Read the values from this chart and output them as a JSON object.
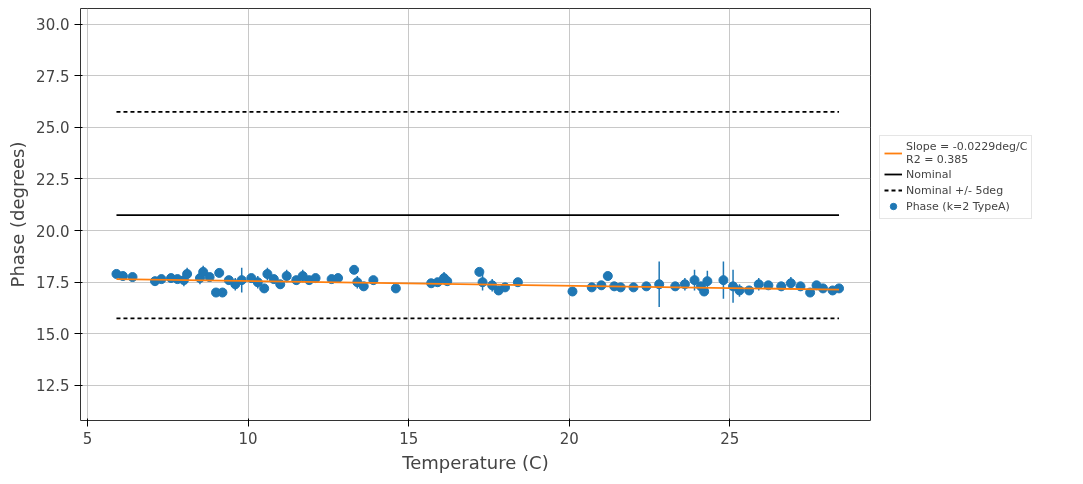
{
  "chart_data": {
    "type": "scatter",
    "xlabel": "Temperature (C)",
    "ylabel": "Phase (degrees)",
    "xlim": [
      4.78,
      29.38
    ],
    "ylim": [
      10.8,
      30.76
    ],
    "xticks": [
      5,
      10,
      15,
      20,
      25
    ],
    "yticks": [
      {
        "value": 12.5,
        "label": "12.5"
      },
      {
        "value": 15,
        "label": "15.0"
      },
      {
        "value": 17.5,
        "label": "17.5"
      },
      {
        "value": 20,
        "label": "20.0"
      },
      {
        "value": 22.5,
        "label": "22.5"
      },
      {
        "value": 25,
        "label": "25.0"
      },
      {
        "value": 27.5,
        "label": "27.5"
      },
      {
        "value": 30,
        "label": "30.0"
      }
    ],
    "grid": true,
    "legend": "right",
    "series": [
      {
        "name": "Slope = -0.0229deg/C\nR2 = 0.385",
        "type": "line",
        "line_style": "solid",
        "color": "#ff7f0e",
        "x": [
          5.9,
          28.4
        ],
        "values": [
          17.65,
          17.14
        ]
      },
      {
        "name": "Nominal",
        "type": "line",
        "line_style": "solid",
        "color": "#000000",
        "x": [
          5.9,
          28.4
        ],
        "values": [
          20.75,
          20.75
        ]
      },
      {
        "name": "Nominal +/- 5deg",
        "type": "line",
        "line_style": "dashed",
        "color": "#000000",
        "x": [
          5.9,
          28.4
        ],
        "values": [
          25.75,
          25.75
        ]
      },
      {
        "type": "line",
        "line_style": "dashed",
        "color": "#000000",
        "x": [
          5.9,
          28.4
        ],
        "values": [
          15.75,
          15.75
        ]
      },
      {
        "name": "Phase (k=2 TypeA)",
        "marker": "circle",
        "color": "#1f77b4",
        "x": [
          5.9,
          6.1,
          6.4,
          7.1,
          7.3,
          7.6,
          7.8,
          8.0,
          8.1,
          8.5,
          8.6,
          8.8,
          9.0,
          9.2,
          9.1,
          9.4,
          9.6,
          9.8,
          10.1,
          10.3,
          10.5,
          10.6,
          10.8,
          11.0,
          11.2,
          11.5,
          11.7,
          11.9,
          12.1,
          12.6,
          12.8,
          13.3,
          13.4,
          13.6,
          13.9,
          14.6,
          15.7,
          15.9,
          16.1,
          16.2,
          17.2,
          17.3,
          17.6,
          17.8,
          18.0,
          18.4,
          20.1,
          20.7,
          21.0,
          21.2,
          21.4,
          21.6,
          22.0,
          22.4,
          22.8,
          23.3,
          23.6,
          23.9,
          24.1,
          24.2,
          24.3,
          24.8,
          25.1,
          25.3,
          25.6,
          25.9,
          26.2,
          26.6,
          26.9,
          27.2,
          27.5,
          27.7,
          27.9,
          28.2,
          28.4
        ],
        "values": [
          17.9,
          17.8,
          17.75,
          17.55,
          17.65,
          17.7,
          17.65,
          17.6,
          17.9,
          17.7,
          18.0,
          17.75,
          17.0,
          17.0,
          17.95,
          17.6,
          17.4,
          17.6,
          17.7,
          17.5,
          17.2,
          17.9,
          17.65,
          17.4,
          17.8,
          17.6,
          17.8,
          17.6,
          17.7,
          17.65,
          17.7,
          18.1,
          17.5,
          17.3,
          17.6,
          17.2,
          17.45,
          17.5,
          17.7,
          17.55,
          18.0,
          17.5,
          17.35,
          17.1,
          17.25,
          17.5,
          17.05,
          17.25,
          17.35,
          17.8,
          17.3,
          17.25,
          17.25,
          17.3,
          17.4,
          17.3,
          17.4,
          17.6,
          17.3,
          17.05,
          17.55,
          17.6,
          17.3,
          17.1,
          17.1,
          17.4,
          17.35,
          17.3,
          17.45,
          17.3,
          17.0,
          17.35,
          17.2,
          17.1,
          17.2
        ],
        "errors": [
          0.15,
          0.15,
          0.1,
          0.2,
          0.2,
          0.15,
          0.2,
          0.3,
          0.3,
          0.3,
          0.3,
          0.2,
          0.1,
          0.1,
          0.2,
          0.2,
          0.3,
          0.6,
          0.2,
          0.3,
          0.2,
          0.3,
          0.2,
          0.2,
          0.3,
          0.2,
          0.3,
          0.2,
          0.2,
          0.2,
          0.15,
          0.2,
          0.3,
          0.2,
          0.2,
          0.1,
          0.15,
          0.2,
          0.3,
          0.2,
          0.15,
          0.4,
          0.3,
          0.2,
          0.2,
          0.1,
          0.15,
          0.1,
          0.2,
          0.2,
          0.2,
          0.1,
          0.1,
          0.15,
          1.1,
          0.2,
          0.3,
          0.5,
          0.2,
          0.2,
          0.5,
          0.9,
          0.8,
          0.3,
          0.2,
          0.3,
          0.2,
          0.2,
          0.3,
          0.2,
          0.15,
          0.2,
          0.2,
          0.15,
          0.2
        ]
      }
    ]
  }
}
